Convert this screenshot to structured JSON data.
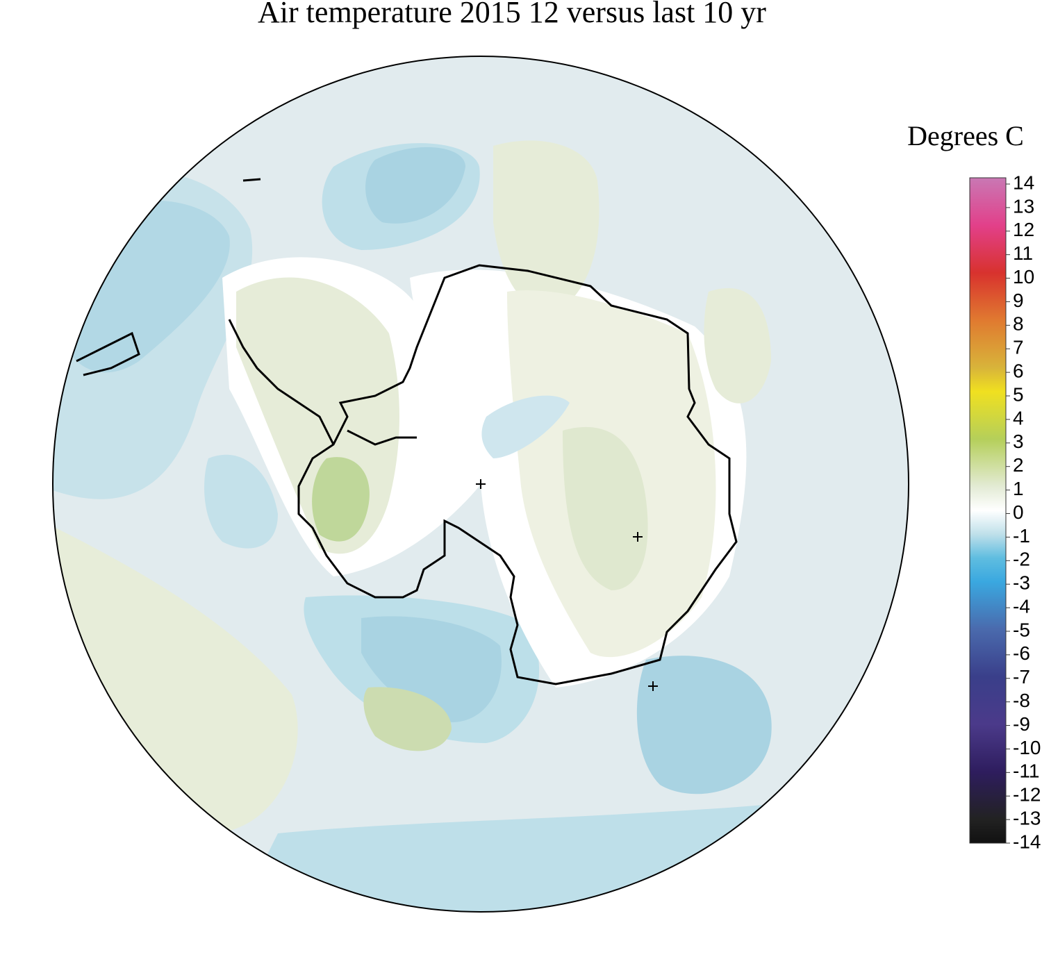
{
  "title": "Air temperature 2015 12 versus last 10 yr",
  "legend": {
    "title": "Degrees C",
    "ticks": [
      14,
      13,
      12,
      11,
      10,
      9,
      8,
      7,
      6,
      5,
      4,
      3,
      2,
      1,
      0,
      -1,
      -2,
      -3,
      -4,
      -5,
      -6,
      -7,
      -8,
      -9,
      -10,
      -11,
      -12,
      -13,
      -14
    ],
    "color_stops": [
      {
        "value": 14,
        "color": "#c978b4"
      },
      {
        "value": 12,
        "color": "#e2408a"
      },
      {
        "value": 10,
        "color": "#d8322e"
      },
      {
        "value": 8,
        "color": "#e07a30"
      },
      {
        "value": 6,
        "color": "#d8b43a"
      },
      {
        "value": 5,
        "color": "#f0e020"
      },
      {
        "value": 3,
        "color": "#b5cf5a"
      },
      {
        "value": 1,
        "color": "#e3ebd5"
      },
      {
        "value": 0,
        "color": "#ffffff"
      },
      {
        "value": -1,
        "color": "#bfe0ea"
      },
      {
        "value": -2,
        "color": "#5fbde0"
      },
      {
        "value": -3,
        "color": "#3aa8e0"
      },
      {
        "value": -5,
        "color": "#4a6aad"
      },
      {
        "value": -7,
        "color": "#3a3f8a"
      },
      {
        "value": -9,
        "color": "#4b3a8a"
      },
      {
        "value": -11,
        "color": "#2e1d5e"
      },
      {
        "value": -13,
        "color": "#222222"
      },
      {
        "value": -14,
        "color": "#111111"
      }
    ]
  }
}
